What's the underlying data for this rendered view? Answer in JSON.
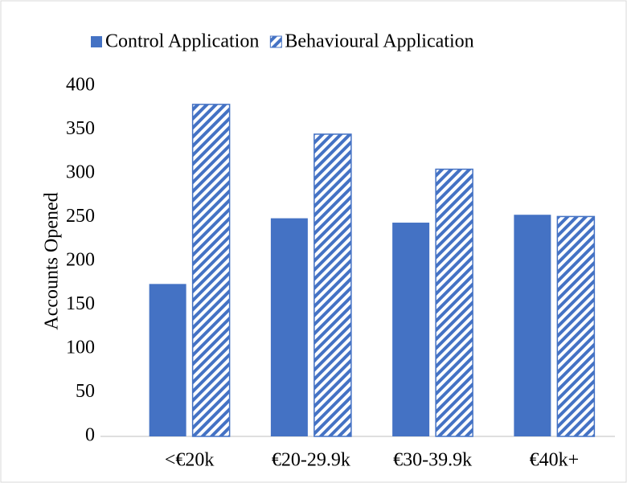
{
  "chart_data": {
    "type": "bar",
    "y_label": "Accounts Opened",
    "categories": [
      "<€20k",
      "€20-29.9k",
      "€30-39.9k",
      "€40k+"
    ],
    "series": [
      {
        "name": "Control Application",
        "color": "#4472c4",
        "values": [
          174,
          249,
          244,
          253
        ]
      },
      {
        "name": "Behavioural Application",
        "color": "#4472c4",
        "hatch": true,
        "values": [
          379,
          345,
          305,
          251
        ]
      }
    ],
    "ylim": [
      0,
      400
    ],
    "yticks": [
      0,
      50,
      100,
      150,
      200,
      250,
      300,
      350,
      400
    ],
    "grid": false,
    "legend": "top"
  }
}
